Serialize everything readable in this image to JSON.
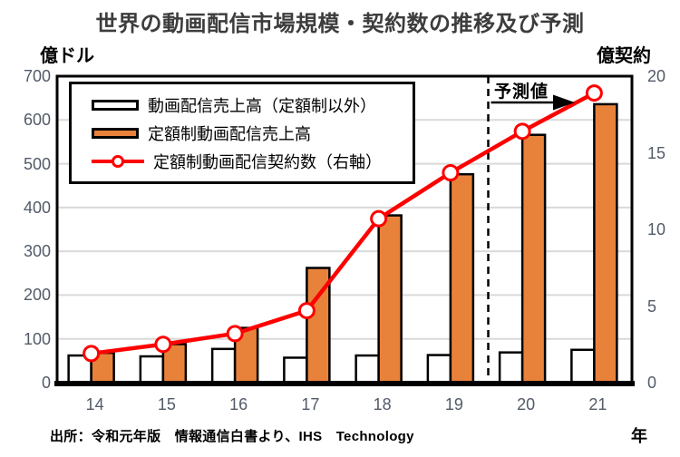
{
  "title": "世界の動画配信市場規模・契約数の推移及び予測",
  "left_axis": {
    "unit": "億ドル",
    "ticks": [
      700,
      600,
      500,
      400,
      300,
      200,
      100,
      0
    ],
    "max": 700
  },
  "right_axis": {
    "unit": "億契約",
    "ticks": [
      20,
      15,
      10,
      5,
      0
    ],
    "max": 20
  },
  "x_axis": {
    "unit": "年",
    "categories": [
      "14",
      "15",
      "16",
      "17",
      "18",
      "19",
      "20",
      "21"
    ]
  },
  "legend": {
    "items": [
      {
        "label": "動画配信売上高（定額制以外）",
        "swatch": "bar",
        "color": "#ffffff"
      },
      {
        "label": "定額制動画配信売上高",
        "swatch": "bar",
        "color": "#e8823b"
      },
      {
        "label": "定額制動画配信契約数（右軸）",
        "swatch": "line-marker",
        "color": "#ff0000"
      }
    ]
  },
  "forecast": {
    "label": "予測値",
    "boundary_after_category": "19"
  },
  "source": "出所：令和元年版　情報通信白書より、IHS　Technology",
  "colors": {
    "bar_nonsub_fill": "#ffffff",
    "bar_sub_fill": "#e8823b",
    "bar_border": "#000000",
    "line": "#ff0000",
    "marker_fill": "#ffffff",
    "gridline": "#d9d9d9",
    "plot_border": "#000000",
    "tick_text": "#525b68",
    "title_text": "#3d3d3d"
  },
  "chart_data": {
    "type": "bar",
    "subtype": "combo-bar-line",
    "title": "世界の動画配信市場規模・契約数の推移及び予測",
    "categories": [
      "14",
      "15",
      "16",
      "17",
      "18",
      "19",
      "20",
      "21"
    ],
    "series": [
      {
        "name": "動画配信売上高（定額制以外）",
        "type": "bar",
        "axis": "left",
        "color": "#ffffff",
        "values": [
          62,
          60,
          77,
          57,
          62,
          63,
          69,
          75
        ]
      },
      {
        "name": "定額制動画配信売上高",
        "type": "bar",
        "axis": "left",
        "color": "#e8823b",
        "values": [
          68,
          88,
          125,
          262,
          382,
          476,
          566,
          636
        ]
      },
      {
        "name": "定額制動画配信契約数（右軸）",
        "type": "line",
        "axis": "right",
        "color": "#ff0000",
        "values": [
          1.9,
          2.5,
          3.2,
          4.7,
          10.7,
          13.7,
          16.4,
          18.9
        ]
      }
    ],
    "xlabel": "年",
    "ylabel_left": "億ドル",
    "ylabel_right": "億契約",
    "ylim_left": [
      0,
      700
    ],
    "ylim_right": [
      0,
      20
    ],
    "grid": true,
    "legend_position": "top-left",
    "forecast_categories": [
      "20",
      "21"
    ],
    "forecast_annotation": "予測値"
  }
}
